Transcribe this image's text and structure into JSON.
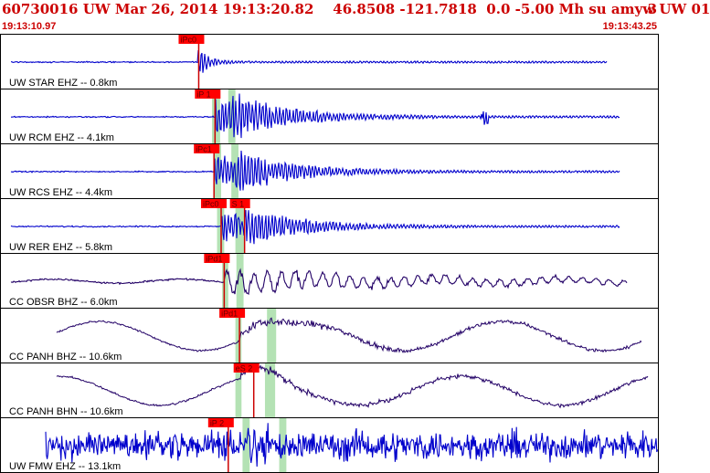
{
  "header": {
    "title": "60730016 UW Mar 26, 2014 19:13:20.82    46.8508 -121.7818  0.0 -5.00 Mh su amyw UW 01",
    "page": "3",
    "start_time": "19:13:10.97",
    "end_time": "19:13:43.25"
  },
  "colors": {
    "header_text": "#cc0000",
    "pick_box": "#ff0000",
    "pick_line": "#cc0000",
    "window_band": "#b4e2b4",
    "trace_blue": "#0000cc",
    "trace_purple": "#220066",
    "panel_border": "#000000"
  },
  "chart_data": {
    "type": "line",
    "x_unit": "seconds after 19:13:10.97",
    "x_range": [
      0,
      32.28
    ],
    "grid": false,
    "legend": "none",
    "channels": [
      {
        "label": "UW STAR EHZ -- 0.8km",
        "color": "#0000cc",
        "kind": "local",
        "p_time": 9.7,
        "s_time": null,
        "end_time": 29.8,
        "amp": 1.0,
        "picks": [
          {
            "label": "iPc0",
            "time": 9.75
          }
        ],
        "windows": []
      },
      {
        "label": "UW RCM EHZ -- 4.1km",
        "color": "#0000cc",
        "kind": "local",
        "p_time": 10.55,
        "s_time": 11.4,
        "end_time": 30.4,
        "amp": 0.9,
        "picks": [
          {
            "label": "iP 1",
            "time": 10.55
          }
        ],
        "windows": [
          [
            10.4,
            10.8
          ],
          [
            11.2,
            11.55
          ]
        ]
      },
      {
        "label": "UW RCS EHZ -- 4.4km",
        "color": "#0000cc",
        "kind": "local",
        "p_time": 10.5,
        "s_time": 11.55,
        "end_time": 30.4,
        "amp": 0.85,
        "picks": [
          {
            "label": "iPc1",
            "time": 10.5
          }
        ],
        "windows": [
          [
            10.5,
            10.85
          ],
          [
            11.35,
            11.7
          ]
        ]
      },
      {
        "label": "UW RER EHZ -- 5.8km",
        "color": "#0000cc",
        "kind": "local",
        "p_time": 10.85,
        "s_time": 12.0,
        "end_time": 30.4,
        "amp": 0.8,
        "picks": [
          {
            "label": "iPc0",
            "time": 10.85
          },
          {
            "label": "S 1",
            "time": 12.0
          }
        ],
        "windows": [
          [
            10.65,
            11.0
          ],
          [
            11.55,
            12.0
          ]
        ]
      },
      {
        "label": "CC OBSR BHZ -- 6.0km",
        "color": "#220066",
        "kind": "broadband",
        "p_time": 11.0,
        "s_time": 11.8,
        "end_time": 30.8,
        "amp": 0.6,
        "picks": [
          {
            "label": "iPd1",
            "time": 11.0
          }
        ],
        "windows": [
          [
            10.9,
            11.2
          ],
          [
            11.6,
            11.95
          ]
        ]
      },
      {
        "label": "CC PANH BHZ -- 10.6km",
        "color": "#220066",
        "kind": "longperiod",
        "p_time": 11.75,
        "s_time": 13.4,
        "end_time": 31.5,
        "amp": 0.9,
        "picks": [
          {
            "label": "iPd1",
            "time": 11.75
          }
        ],
        "windows": [
          [
            11.55,
            11.85
          ],
          [
            13.1,
            13.55
          ]
        ]
      },
      {
        "label": "CC PANH BHN -- 10.6km",
        "color": "#220066",
        "kind": "longperiod",
        "p_time": 11.8,
        "s_time": 13.35,
        "end_time": 31.8,
        "amp": 0.9,
        "picks": [
          {
            "label": "eS 2",
            "time": 12.45
          }
        ],
        "windows": [
          [
            11.55,
            11.85
          ],
          [
            13.0,
            13.5
          ]
        ]
      },
      {
        "label": "UW FMW EHZ -- 13.1km",
        "color": "#0000cc",
        "kind": "noisy",
        "p_time": 12.1,
        "s_time": 13.8,
        "end_time": 32.28,
        "amp": 1.0,
        "picks": [
          {
            "label": "iP 2",
            "time": 11.2
          }
        ],
        "windows": [
          [
            11.9,
            12.25
          ],
          [
            13.7,
            14.05
          ]
        ]
      }
    ]
  }
}
